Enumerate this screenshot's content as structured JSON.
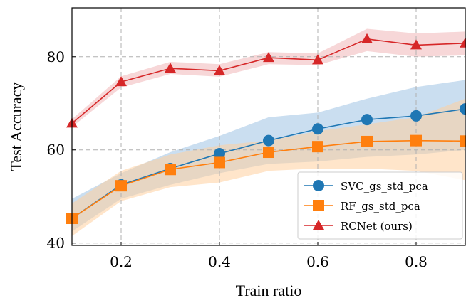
{
  "chart_data": {
    "type": "line",
    "xlabel": "Train ratio",
    "ylabel": "Test Accuracy",
    "xlim": [
      0.1,
      0.9
    ],
    "ylim": [
      39.5,
      90.5
    ],
    "xticks": [
      0.2,
      0.4,
      0.6,
      0.8
    ],
    "xtick_labels": [
      "0.2",
      "0.4",
      "0.6",
      "0.8"
    ],
    "yticks": [
      40,
      60,
      80
    ],
    "ytick_labels": [
      "40",
      "60",
      "80"
    ],
    "grid": true,
    "legend_position": "bottom-right",
    "x": [
      0.1,
      0.2,
      0.3,
      0.4,
      0.5,
      0.6,
      0.7,
      0.8,
      0.9
    ],
    "series": [
      {
        "name": "SVC_gs_std_pca",
        "color": "#1f77b4",
        "band_color": "#9ec3e3",
        "marker": "circle",
        "values": [
          45.3,
          52.5,
          56.0,
          59.2,
          62.0,
          64.5,
          66.5,
          67.3,
          68.8
        ],
        "lower": [
          42.5,
          49.5,
          52.5,
          55.0,
          57.0,
          57.5,
          58.5,
          59.0,
          60.0
        ],
        "upper": [
          49.5,
          55.0,
          59.5,
          63.0,
          67.0,
          68.0,
          71.0,
          73.5,
          75.0
        ]
      },
      {
        "name": "RF_gs_std_pca",
        "color": "#ff7f0e",
        "band_color": "#ffcf9e",
        "marker": "square",
        "values": [
          45.3,
          52.3,
          55.8,
          57.3,
          59.5,
          60.7,
          61.8,
          62.0,
          61.9
        ],
        "lower": [
          41.5,
          49.0,
          52.0,
          53.0,
          55.5,
          56.0,
          56.0,
          55.5,
          53.5
        ],
        "upper": [
          48.5,
          55.5,
          59.0,
          61.0,
          62.0,
          64.0,
          65.5,
          67.0,
          71.0
        ]
      },
      {
        "name": "RCNet (ours)",
        "color": "#d62728",
        "band_color": "#f1b6b8",
        "marker": "triangle",
        "values": [
          65.7,
          74.6,
          77.5,
          77.0,
          79.8,
          79.3,
          83.8,
          82.5,
          82.9
        ],
        "lower": [
          64.9,
          73.4,
          76.3,
          75.7,
          78.4,
          78.2,
          81.2,
          80.0,
          80.3
        ],
        "upper": [
          66.6,
          75.8,
          78.9,
          78.4,
          81.0,
          80.7,
          86.0,
          85.0,
          85.4
        ]
      }
    ]
  }
}
